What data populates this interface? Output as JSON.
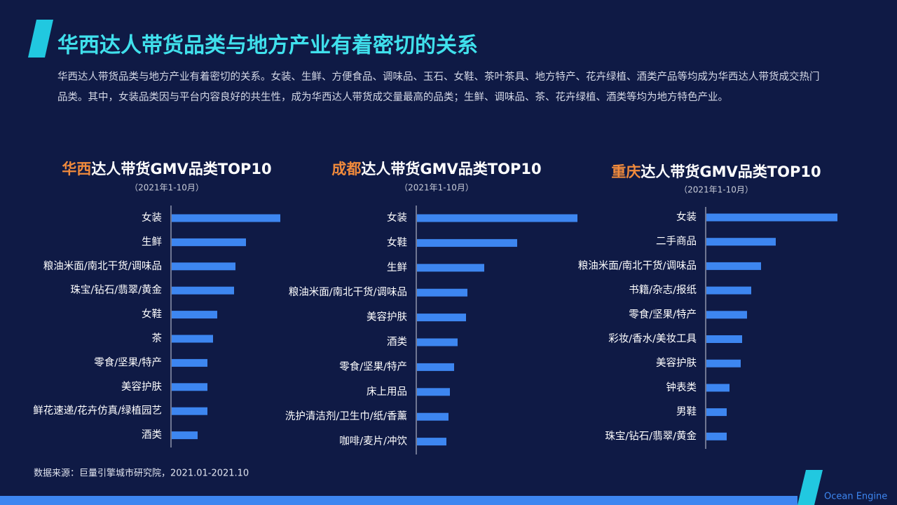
{
  "header": {
    "title": "华西达人带货品类与地方产业有着密切的关系",
    "paragraph": "华西达人带货品类与地方产业有着密切的关系。女装、生鲜、方便食品、调味品、玉石、女鞋、茶叶茶具、地方特产、花卉绿植、酒类产品等均成为华西达人带货成交热门品类。其中，女装品类因与平台内容良好的共生性，成为华西达人带货成交量最高的品类；生鲜、调味品、茶、花卉绿植、酒类等均为地方特色产业。"
  },
  "chart_data": [
    {
      "type": "bar",
      "orientation": "horizontal",
      "title_highlight": "华西",
      "title": "达人带货GMV品类TOP10",
      "subtitle": "（2021年1-10月）",
      "color": "#3d86f0",
      "xlim": [
        0,
        230
      ],
      "categories": [
        "女装",
        "生鲜",
        "粮油米面/南北干货/调味品",
        "珠宝/钻石/翡翠/黄金",
        "女鞋",
        "茶",
        "零食/坚果/特产",
        "美容护肤",
        "鲜花速递/花卉仿真/绿植园艺",
        "酒类"
      ],
      "values": [
        155,
        106,
        91,
        89,
        65,
        59,
        51,
        51,
        51,
        37
      ]
    },
    {
      "type": "bar",
      "orientation": "horizontal",
      "title_highlight": "成都",
      "title": "达人带货GMV品类TOP10",
      "subtitle": "（2021年1-10月）",
      "color": "#3d86f0",
      "xlim": [
        0,
        230
      ],
      "categories": [
        "女装",
        "女鞋",
        "生鲜",
        "粮油米面/南北干货/调味品",
        "美容护肤",
        "酒类",
        "零食/坚果/特产",
        "床上用品",
        "洗护清洁剂/卫生巾/纸/香薰",
        "咖啡/麦片/冲饮"
      ],
      "values": [
        229,
        143,
        96,
        72,
        70,
        58,
        53,
        47,
        45,
        42
      ]
    },
    {
      "type": "bar",
      "orientation": "horizontal",
      "title_highlight": "重庆",
      "title": "达人带货GMV品类TOP10",
      "subtitle": "（2021年1-10月）",
      "color": "#3d86f0",
      "xlim": [
        0,
        230
      ],
      "categories": [
        "女装",
        "二手商品",
        "粮油米面/南北干货/调味品",
        "书籍/杂志/报纸",
        "零食/坚果/特产",
        "彩妆/香水/美妆工具",
        "美容护肤",
        "钟表类",
        "男鞋",
        "珠宝/钻石/翡翠/黄金"
      ],
      "values": [
        187,
        99,
        78,
        64,
        58,
        51,
        49,
        33,
        29,
        29
      ]
    }
  ],
  "footer": {
    "source": "数据来源：巨量引擎城市研究院，2021.01-2021.10",
    "brand": "Ocean Engine"
  }
}
